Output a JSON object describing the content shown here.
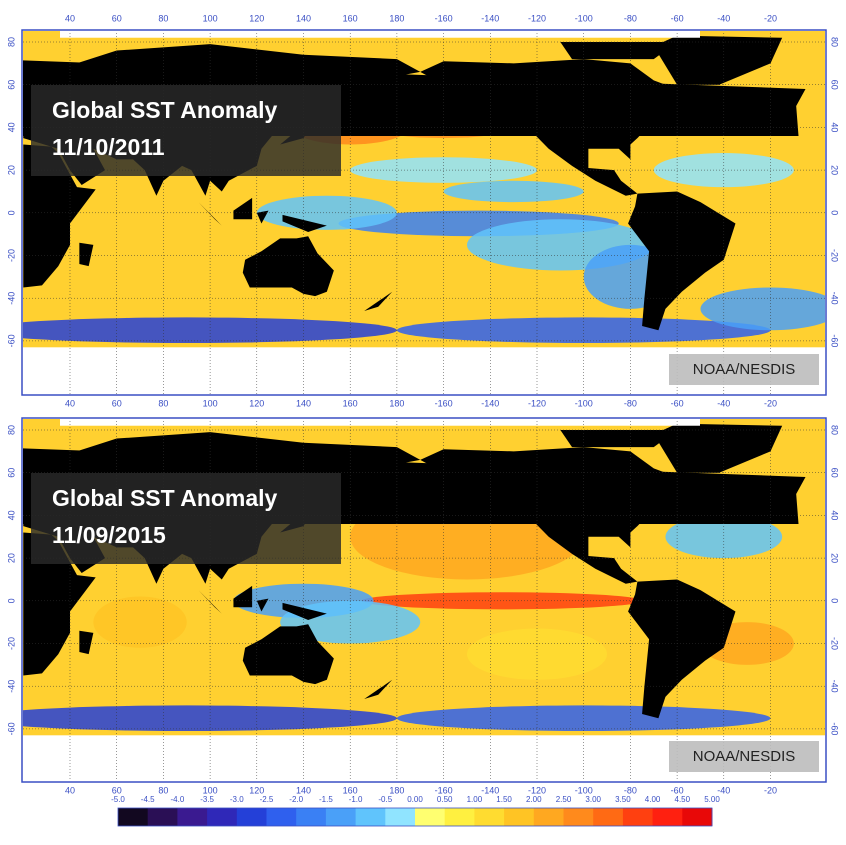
{
  "panels": [
    {
      "title": "Global SST Anomaly",
      "date": "11/10/2011",
      "credit": "NOAA/NESDIS"
    },
    {
      "title": "Global SST Anomaly",
      "date": "11/09/2015",
      "credit": "NOAA/NESDIS"
    }
  ],
  "longitude_labels": [
    40,
    60,
    80,
    100,
    120,
    140,
    160,
    180,
    -160,
    -140,
    -120,
    -100,
    -80,
    -60,
    -40,
    -20
  ],
  "latitude_labels": [
    80,
    60,
    40,
    20,
    0,
    -20,
    -40,
    -60
  ],
  "colorbar": {
    "labels": [
      "-5.0",
      "-4.5",
      "-4.0",
      "-3.5",
      "-3.0",
      "-2.5",
      "-2.0",
      "-1.5",
      "-1.0",
      "-0.5",
      "0.00",
      "0.50",
      "1.00",
      "1.50",
      "2.00",
      "2.50",
      "3.00",
      "3.50",
      "4.00",
      "4.50",
      "5.00"
    ],
    "colors": [
      "#120820",
      "#2a0f55",
      "#3a1a90",
      "#2f28b8",
      "#2440d8",
      "#2f60ee",
      "#3a80f4",
      "#4aa0f8",
      "#60c4fc",
      "#90e4ff",
      "#ffff70",
      "#fff040",
      "#ffdc30",
      "#ffc424",
      "#ffa820",
      "#ff8a1c",
      "#ff6a14",
      "#ff4010",
      "#ff2010",
      "#e80808"
    ]
  }
}
